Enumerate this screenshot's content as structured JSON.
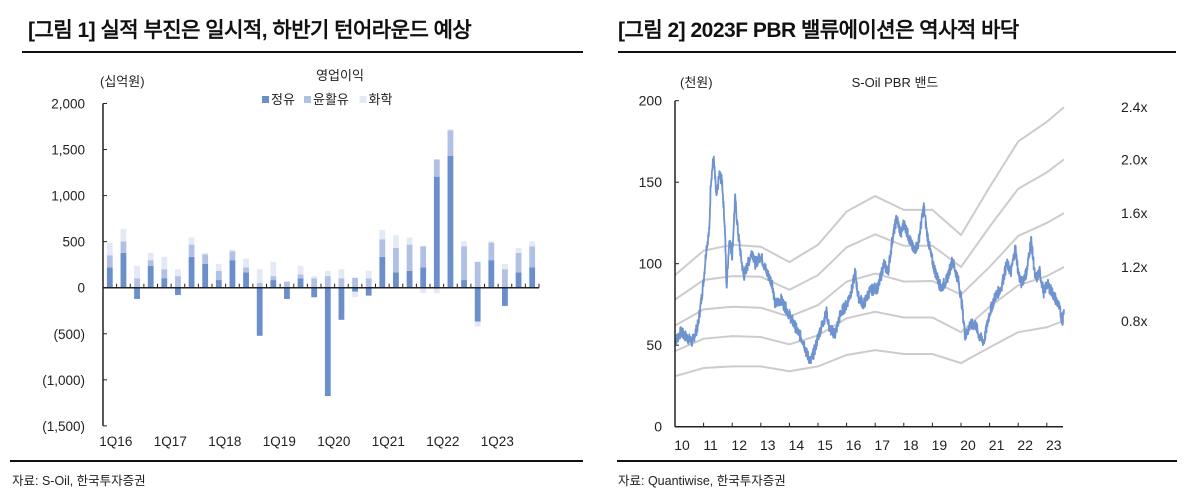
{
  "left": {
    "title": "[그림 1] 실적 부진은 일시적, 하반기 턴어라운드 예상",
    "source": "자료: S-Oil, 한국투자증권"
  },
  "right": {
    "title": "[그림 2] 2023F PBR 밸류에이션은 역사적 바닥",
    "source": "자료: Quantiwise, 한국투자증권"
  },
  "chart_data": [
    {
      "type": "bar",
      "stacked": true,
      "title": "영업이익",
      "ylabel": "(십억원)",
      "ylim": [
        -1500,
        2000
      ],
      "yticks": [
        2000,
        1500,
        1000,
        500,
        0,
        -500,
        -1000,
        -1500
      ],
      "ytick_labels": [
        "2,000",
        "1,500",
        "1,000",
        "500",
        "0",
        "(500)",
        "(1,000)",
        "(1,500)"
      ],
      "categories": [
        "1Q16",
        "2Q16",
        "3Q16",
        "4Q16",
        "1Q17",
        "2Q17",
        "3Q17",
        "4Q17",
        "1Q18",
        "2Q18",
        "3Q18",
        "4Q18",
        "1Q19",
        "2Q19",
        "3Q19",
        "4Q19",
        "1Q20",
        "2Q20",
        "3Q20",
        "4Q20",
        "1Q21",
        "2Q21",
        "3Q21",
        "4Q21",
        "1Q22",
        "2Q22",
        "3Q22",
        "4Q22",
        "1Q23",
        "2Q23",
        "3Q23",
        "4Q23"
      ],
      "xtick_labels": [
        "1Q16",
        "1Q17",
        "1Q18",
        "1Q19",
        "1Q20",
        "1Q21",
        "1Q22",
        "1Q23"
      ],
      "legend_position": "top-center",
      "series": [
        {
          "name": "정유",
          "color": "#6b8fcb",
          "values": [
            220,
            378,
            -122,
            238,
            100,
            -79,
            335,
            259,
            83,
            299,
            166,
            -522,
            83,
            -122,
            100,
            -104,
            -1177,
            -349,
            -43,
            -86,
            335,
            166,
            184,
            220,
            1206,
            1433,
            83,
            -367,
            299,
            -198,
            166,
            220
          ]
        },
        {
          "name": "윤활유",
          "color": "#b1c1e5",
          "values": [
            133,
            126,
            100,
            61,
            101,
            126,
            133,
            101,
            101,
            97,
            54,
            54,
            43,
            65,
            44,
            100,
            126,
            100,
            108,
            100,
            191,
            266,
            284,
            230,
            187,
            277,
            367,
            281,
            191,
            201,
            212,
            230
          ]
        },
        {
          "name": "화학",
          "color": "#e4e9f6",
          "values": [
            137,
            137,
            137,
            79,
            134,
            75,
            76,
            18,
            75,
            18,
            97,
            147,
            155,
            7,
            94,
            26,
            58,
            101,
            -61,
            84,
            100,
            137,
            76,
            -61,
            -61,
            11,
            54,
            -54,
            14,
            58,
            54,
            54
          ]
        }
      ]
    },
    {
      "type": "line",
      "title": "S-Oil PBR 밴드",
      "ylabel": "(천원)",
      "ylim": [
        0,
        200
      ],
      "yticks": [
        0,
        50,
        100,
        150,
        200
      ],
      "xlim": [
        2010,
        2023.6
      ],
      "xtick_labels": [
        "10",
        "11",
        "12",
        "13",
        "14",
        "15",
        "16",
        "17",
        "18",
        "19",
        "20",
        "21",
        "22",
        "23"
      ],
      "price_color": "#6f93cf",
      "band_color": "#cccccc",
      "band_x": [
        2010,
        2011,
        2012,
        2013,
        2014,
        2015,
        2016,
        2017,
        2018,
        2019,
        2020,
        2021,
        2022,
        2023,
        2023.6
      ],
      "bands": [
        {
          "name": "2.4x",
          "values": [
            93,
            108,
            111.6,
            110.4,
            101,
            111.6,
            132,
            141.5,
            133,
            133,
            117.6,
            147,
            175,
            187,
            196
          ]
        },
        {
          "name": "2.0x",
          "values": [
            78,
            90,
            92.4,
            92,
            84,
            93,
            110,
            118,
            111,
            111,
            98,
            122.7,
            146,
            156,
            164
          ]
        },
        {
          "name": "1.6x",
          "values": [
            62,
            72,
            73.6,
            73,
            67.5,
            74.6,
            89,
            94,
            89,
            89.4,
            81,
            98,
            117,
            125,
            131
          ]
        },
        {
          "name": "1.2x",
          "values": [
            46.4,
            54,
            55.6,
            55,
            50.5,
            56,
            66.5,
            70.5,
            67,
            67,
            58,
            73.6,
            86.7,
            92.4,
            98
          ]
        },
        {
          "name": "0.8x",
          "values": [
            31,
            36,
            37,
            37,
            34,
            37,
            44,
            47,
            44.6,
            44.6,
            39,
            48.7,
            58,
            61,
            65
          ]
        }
      ],
      "price": [
        [
          2010.0,
          52
        ],
        [
          2010.2,
          58
        ],
        [
          2010.4,
          55
        ],
        [
          2010.6,
          52
        ],
        [
          2010.8,
          62
        ],
        [
          2010.9,
          75
        ],
        [
          2011.0,
          90
        ],
        [
          2011.1,
          110
        ],
        [
          2011.2,
          120
        ],
        [
          2011.25,
          150
        ],
        [
          2011.35,
          165
        ],
        [
          2011.45,
          140
        ],
        [
          2011.55,
          155
        ],
        [
          2011.65,
          150
        ],
        [
          2011.75,
          120
        ],
        [
          2011.8,
          85
        ],
        [
          2011.9,
          115
        ],
        [
          2012.0,
          105
        ],
        [
          2012.1,
          140
        ],
        [
          2012.2,
          120
        ],
        [
          2012.3,
          105
        ],
        [
          2012.4,
          92
        ],
        [
          2012.55,
          100
        ],
        [
          2012.7,
          108
        ],
        [
          2012.8,
          100
        ],
        [
          2013.0,
          105
        ],
        [
          2013.2,
          95
        ],
        [
          2013.4,
          88
        ],
        [
          2013.5,
          75
        ],
        [
          2013.7,
          78
        ],
        [
          2013.9,
          72
        ],
        [
          2014.1,
          65
        ],
        [
          2014.3,
          58
        ],
        [
          2014.5,
          52
        ],
        [
          2014.6,
          45
        ],
        [
          2014.75,
          40
        ],
        [
          2014.9,
          48
        ],
        [
          2015.0,
          55
        ],
        [
          2015.15,
          63
        ],
        [
          2015.3,
          70
        ],
        [
          2015.4,
          60
        ],
        [
          2015.6,
          57
        ],
        [
          2015.8,
          70
        ],
        [
          2016.0,
          75
        ],
        [
          2016.2,
          85
        ],
        [
          2016.3,
          95
        ],
        [
          2016.4,
          80
        ],
        [
          2016.6,
          75
        ],
        [
          2016.8,
          83
        ],
        [
          2017.0,
          85
        ],
        [
          2017.1,
          85
        ],
        [
          2017.3,
          100
        ],
        [
          2017.45,
          95
        ],
        [
          2017.6,
          115
        ],
        [
          2017.75,
          128
        ],
        [
          2017.9,
          118
        ],
        [
          2018.0,
          125
        ],
        [
          2018.2,
          115
        ],
        [
          2018.35,
          108
        ],
        [
          2018.5,
          112
        ],
        [
          2018.7,
          135
        ],
        [
          2018.8,
          120
        ],
        [
          2018.95,
          105
        ],
        [
          2019.1,
          95
        ],
        [
          2019.3,
          85
        ],
        [
          2019.5,
          90
        ],
        [
          2019.7,
          102
        ],
        [
          2019.9,
          90
        ],
        [
          2020.0,
          80
        ],
        [
          2020.15,
          55
        ],
        [
          2020.3,
          62
        ],
        [
          2020.5,
          63
        ],
        [
          2020.65,
          55
        ],
        [
          2020.8,
          52
        ],
        [
          2021.0,
          70
        ],
        [
          2021.2,
          80
        ],
        [
          2021.4,
          85
        ],
        [
          2021.6,
          100
        ],
        [
          2021.75,
          95
        ],
        [
          2021.9,
          110
        ],
        [
          2022.0,
          95
        ],
        [
          2022.1,
          88
        ],
        [
          2022.3,
          95
        ],
        [
          2022.45,
          115
        ],
        [
          2022.6,
          90
        ],
        [
          2022.75,
          95
        ],
        [
          2022.9,
          82
        ],
        [
          2023.0,
          88
        ],
        [
          2023.2,
          82
        ],
        [
          2023.4,
          75
        ],
        [
          2023.55,
          65
        ],
        [
          2023.6,
          72
        ]
      ]
    }
  ]
}
